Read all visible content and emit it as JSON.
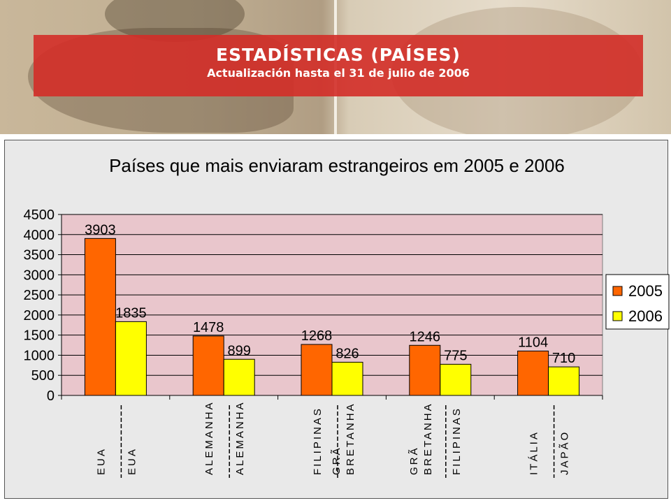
{
  "header": {
    "title": "ESTADÍSTICAS (PAÍSES)",
    "subtitle": "Actualización hasta el 31 de julio de 2006"
  },
  "colors": {
    "series_2005": "#ff6600",
    "series_2006": "#ffff00",
    "plot_background": "#e9c6cc",
    "header_band": "#d32d28"
  },
  "chart_data": {
    "type": "bar",
    "title": "Países que mais enviaram estrangeiros em 2005 e 2006",
    "xlabel": "",
    "ylabel": "",
    "ylim": [
      0,
      4500
    ],
    "yticks": [
      0,
      500,
      1000,
      1500,
      2000,
      2500,
      3000,
      3500,
      4000,
      4500
    ],
    "grid": true,
    "legend_position": "right",
    "series": [
      {
        "name": "2005",
        "values": [
          3903,
          1478,
          1268,
          1246,
          1104
        ],
        "labels": [
          "EUA",
          "ALEMANHA",
          "FILIPINAS",
          "GRÃ BRETANHA",
          "ITÁLIA"
        ]
      },
      {
        "name": "2006",
        "values": [
          1835,
          899,
          826,
          775,
          710
        ],
        "labels": [
          "EUA",
          "ALEMANHA",
          "GRÃ BRETANHA",
          "FILIPINAS",
          "JAPÃO"
        ]
      }
    ]
  }
}
